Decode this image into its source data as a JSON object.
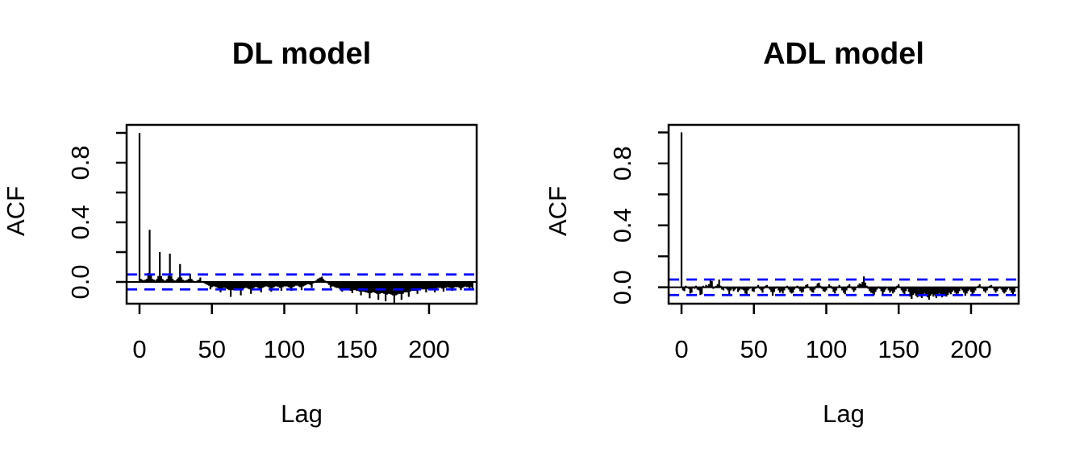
{
  "figure": {
    "background": "#FFFFFF",
    "text_color": "#000000"
  },
  "chart_data": [
    {
      "type": "bar",
      "title": "DL model",
      "xlabel": "Lag",
      "ylabel": "ACF",
      "x_ticks": [
        0,
        50,
        100,
        150,
        200
      ],
      "y_ticks": [
        0,
        0.2,
        0.4,
        0.6,
        0.8,
        1.0
      ],
      "y_tick_labels": [
        {
          "value": 0,
          "label": "0.0"
        },
        {
          "value": 0.4,
          "label": "0.4"
        },
        {
          "value": 0.8,
          "label": "0.8"
        }
      ],
      "xlim": [
        -8.9,
        232.9
      ],
      "ylim": [
        -0.146,
        1.054
      ],
      "grid": false,
      "legend": "none",
      "confidence_bounds": [
        0.05,
        -0.05
      ],
      "colors": {
        "series": "#000000",
        "confidence": "#0000FF"
      },
      "lag_start": 0,
      "acf": [
        1.0,
        0.02,
        0.015,
        0.01,
        0.015,
        0.02,
        0.06,
        0.35,
        0.05,
        0.02,
        0.015,
        0.01,
        0.02,
        0.04,
        0.2,
        0.04,
        0.02,
        0.01,
        0.01,
        0.02,
        0.04,
        0.19,
        0.04,
        0.02,
        0.01,
        0.01,
        0.02,
        0.03,
        0.12,
        0.03,
        0.015,
        0.01,
        0.01,
        0.015,
        0.02,
        0.055,
        0.02,
        0.01,
        0.005,
        0.005,
        0.01,
        0.015,
        0.03,
        0.005,
        -0.005,
        -0.01,
        -0.015,
        -0.02,
        -0.025,
        -0.05,
        -0.035,
        -0.03,
        -0.03,
        -0.035,
        -0.04,
        -0.045,
        -0.07,
        -0.045,
        -0.04,
        -0.04,
        -0.045,
        -0.05,
        -0.055,
        -0.1,
        -0.055,
        -0.05,
        -0.045,
        -0.045,
        -0.05,
        -0.055,
        -0.09,
        -0.05,
        -0.045,
        -0.04,
        -0.04,
        -0.045,
        -0.05,
        -0.08,
        -0.045,
        -0.04,
        -0.035,
        -0.035,
        -0.04,
        -0.045,
        -0.07,
        -0.04,
        -0.035,
        -0.03,
        -0.03,
        -0.035,
        -0.04,
        -0.065,
        -0.04,
        -0.035,
        -0.03,
        -0.03,
        -0.035,
        -0.04,
        -0.06,
        -0.035,
        -0.03,
        -0.03,
        -0.03,
        -0.035,
        -0.04,
        -0.06,
        -0.035,
        -0.03,
        -0.025,
        -0.025,
        -0.03,
        -0.035,
        -0.055,
        -0.03,
        -0.025,
        -0.02,
        -0.015,
        -0.015,
        -0.02,
        -0.04,
        -0.01,
        0.0,
        0.01,
        0.02,
        0.025,
        0.03,
        0.035,
        0.02,
        0.01,
        0.0,
        -0.01,
        -0.02,
        -0.04,
        -0.03,
        -0.03,
        -0.035,
        -0.04,
        -0.04,
        -0.045,
        -0.05,
        -0.065,
        -0.045,
        -0.045,
        -0.05,
        -0.05,
        -0.055,
        -0.06,
        -0.075,
        -0.055,
        -0.055,
        -0.06,
        -0.06,
        -0.065,
        -0.09,
        -0.065,
        -0.065,
        -0.07,
        -0.07,
        -0.075,
        -0.11,
        -0.075,
        -0.07,
        -0.07,
        -0.075,
        -0.08,
        -0.12,
        -0.08,
        -0.075,
        -0.075,
        -0.08,
        -0.13,
        -0.085,
        -0.08,
        -0.08,
        -0.085,
        -0.09,
        -0.14,
        -0.09,
        -0.085,
        -0.08,
        -0.08,
        -0.12,
        -0.08,
        -0.07,
        -0.07,
        -0.07,
        -0.1,
        -0.065,
        -0.06,
        -0.06,
        -0.06,
        -0.06,
        -0.08,
        -0.055,
        -0.05,
        -0.05,
        -0.05,
        -0.05,
        -0.07,
        -0.05,
        -0.045,
        -0.045,
        -0.045,
        -0.05,
        -0.07,
        -0.045,
        -0.04,
        -0.04,
        -0.04,
        -0.045,
        -0.065,
        -0.04,
        -0.04,
        -0.035,
        -0.04,
        -0.04,
        -0.06,
        -0.04,
        -0.035,
        -0.035,
        -0.035,
        -0.04,
        -0.055,
        -0.04,
        -0.035,
        -0.03,
        -0.035,
        -0.035,
        -0.05,
        -0.035,
        -0.05
      ]
    },
    {
      "type": "bar",
      "title": "ADL model",
      "xlabel": "Lag",
      "ylabel": "ACF",
      "x_ticks": [
        0,
        50,
        100,
        150,
        200
      ],
      "y_ticks": [
        0,
        0.2,
        0.4,
        0.6,
        0.8,
        1.0
      ],
      "y_tick_labels": [
        {
          "value": 0,
          "label": "0.0"
        },
        {
          "value": 0.4,
          "label": "0.4"
        },
        {
          "value": 0.8,
          "label": "0.8"
        }
      ],
      "xlim": [
        -8.9,
        232.9
      ],
      "ylim": [
        -0.106,
        1.049
      ],
      "grid": false,
      "legend": "none",
      "confidence_bounds": [
        0.05,
        -0.05
      ],
      "colors": {
        "series": "#000000",
        "confidence": "#0000FF"
      },
      "lag_start": 0,
      "acf": [
        1.0,
        -0.02,
        -0.025,
        0.01,
        -0.005,
        -0.01,
        -0.04,
        -0.035,
        0.005,
        -0.01,
        0.01,
        -0.015,
        -0.02,
        -0.05,
        -0.045,
        0.01,
        -0.005,
        0.015,
        0.01,
        0.02,
        0.045,
        0.04,
        -0.01,
        0.005,
        0.01,
        0.02,
        0.05,
        0.01,
        -0.015,
        -0.02,
        -0.005,
        -0.01,
        -0.02,
        -0.05,
        -0.02,
        -0.01,
        -0.025,
        -0.015,
        -0.005,
        -0.03,
        -0.02,
        -0.01,
        -0.015,
        -0.02,
        -0.04,
        -0.045,
        -0.02,
        -0.01,
        -0.005,
        -0.025,
        -0.03,
        -0.01,
        0.005,
        0.015,
        -0.01,
        -0.02,
        -0.035,
        -0.01,
        0.01,
        0.015,
        -0.005,
        -0.015,
        -0.03,
        -0.055,
        -0.03,
        -0.01,
        0.005,
        -0.02,
        -0.035,
        -0.025,
        -0.04,
        -0.02,
        -0.005,
        0.01,
        -0.015,
        -0.03,
        -0.04,
        -0.035,
        -0.015,
        0.005,
        0.01,
        -0.01,
        -0.025,
        -0.035,
        -0.03,
        -0.01,
        0.015,
        0.02,
        -0.005,
        -0.02,
        -0.03,
        -0.035,
        -0.015,
        0.01,
        0.025,
        0.03,
        0.01,
        -0.01,
        -0.025,
        -0.03,
        -0.02,
        0.005,
        0.02,
        0.01,
        -0.01,
        -0.03,
        -0.04,
        -0.02,
        0.005,
        0.015,
        -0.005,
        -0.02,
        -0.035,
        -0.045,
        -0.02,
        0.01,
        0.02,
        0.005,
        -0.015,
        -0.03,
        -0.02,
        0.0,
        0.015,
        0.025,
        0.02,
        0.035,
        0.07,
        0.03,
        0.01,
        -0.01,
        -0.025,
        -0.035,
        -0.04,
        -0.05,
        -0.03,
        -0.015,
        0.005,
        -0.01,
        -0.025,
        -0.055,
        -0.03,
        -0.015,
        -0.005,
        -0.02,
        -0.035,
        -0.025,
        -0.04,
        -0.03,
        -0.015,
        0.01,
        0.02,
        -0.005,
        -0.02,
        -0.035,
        -0.045,
        -0.025,
        -0.01,
        -0.03,
        -0.06,
        -0.075,
        -0.05,
        -0.04,
        -0.055,
        -0.065,
        -0.045,
        -0.06,
        -0.07,
        -0.05,
        -0.04,
        -0.055,
        -0.065,
        -0.08,
        -0.055,
        -0.045,
        -0.06,
        -0.05,
        -0.07,
        -0.055,
        -0.04,
        -0.05,
        -0.065,
        -0.045,
        -0.055,
        -0.06,
        -0.05,
        -0.035,
        -0.045,
        -0.03,
        -0.02,
        -0.035,
        -0.05,
        -0.04,
        -0.025,
        -0.01,
        -0.02,
        -0.035,
        -0.055,
        -0.04,
        -0.025,
        -0.015,
        -0.03,
        -0.045,
        -0.035,
        -0.02,
        -0.005,
        0.01,
        0.02,
        0.005,
        -0.01,
        -0.025,
        -0.035,
        -0.02,
        -0.005,
        0.01,
        0.015,
        -0.005,
        -0.02,
        -0.035,
        -0.025,
        -0.01,
        0.005,
        -0.015,
        -0.03,
        -0.04,
        -0.03,
        -0.015,
        -0.005,
        -0.02,
        -0.035,
        -0.045,
        -0.03
      ]
    }
  ]
}
